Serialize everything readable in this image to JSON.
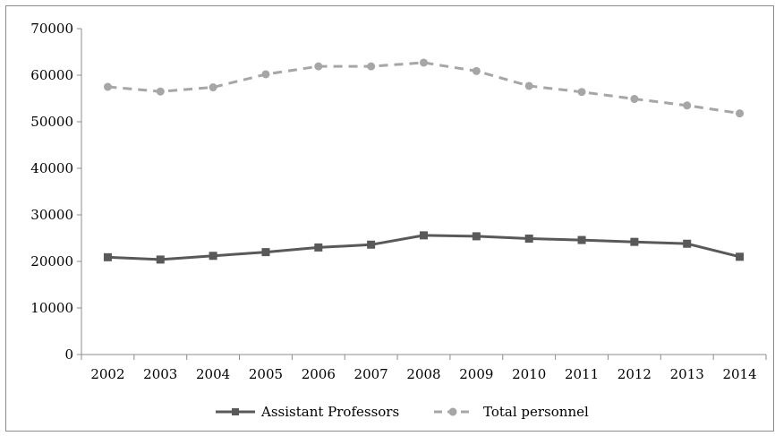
{
  "chart_data": {
    "type": "line",
    "title": "",
    "xlabel": "",
    "ylabel": "",
    "categories": [
      "2002",
      "2003",
      "2004",
      "2005",
      "2006",
      "2007",
      "2008",
      "2009",
      "2010",
      "2011",
      "2012",
      "2013",
      "2014"
    ],
    "ylim": [
      0,
      70000
    ],
    "yticks": [
      "0",
      "10000",
      "20000",
      "30000",
      "40000",
      "50000",
      "60000",
      "70000"
    ],
    "grid": false,
    "legend_position": "bottom",
    "series": [
      {
        "name": "Assistant Professors",
        "color": "#595959",
        "line_style": "solid",
        "marker": "square",
        "values": [
          20900,
          20400,
          21200,
          22000,
          23000,
          23600,
          25600,
          25400,
          24900,
          24600,
          24200,
          23800,
          21000
        ]
      },
      {
        "name": "Total personnel",
        "color": "#a6a6a6",
        "line_style": "dashed",
        "marker": "circle",
        "values": [
          57500,
          56500,
          57400,
          60200,
          61900,
          61900,
          62700,
          60900,
          57700,
          56400,
          54900,
          53500,
          51800
        ]
      }
    ]
  }
}
